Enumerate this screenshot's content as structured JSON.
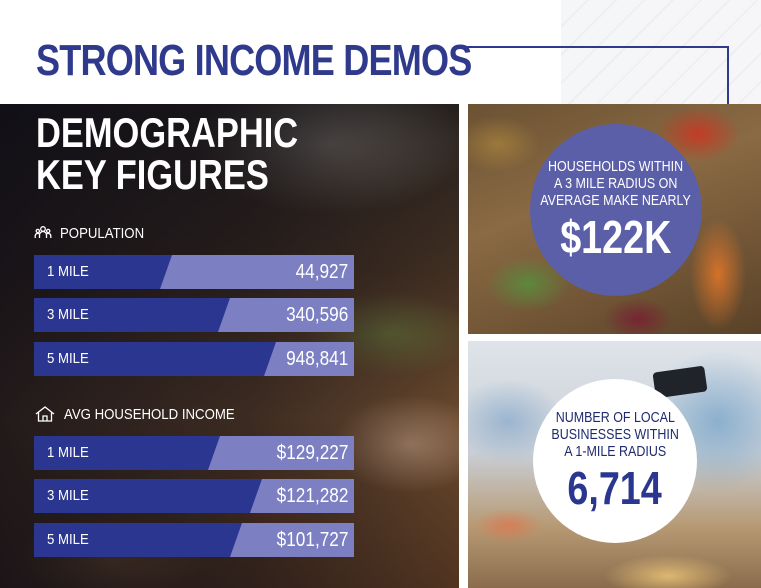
{
  "header": {
    "title": "STRONG INCOME DEMOS"
  },
  "demographics": {
    "title_line1": "DEMOGRAPHIC",
    "title_line2": "KEY FIGURES",
    "population": {
      "label": "POPULATION",
      "icon": "people-icon",
      "rows": [
        {
          "label": "1 MILE",
          "value": "44,927"
        },
        {
          "label": "3 MILE",
          "value": "340,596"
        },
        {
          "label": "5 MILE",
          "value": "948,841"
        }
      ]
    },
    "income": {
      "label": "AVG HOUSEHOLD INCOME",
      "icon": "house-icon",
      "rows": [
        {
          "label": "1 MILE",
          "value": "$129,227"
        },
        {
          "label": "3 MILE",
          "value": "$121,282"
        },
        {
          "label": "5 MILE",
          "value": "$101,727"
        }
      ]
    }
  },
  "households": {
    "line1": "HOUSEHOLDS WITHIN",
    "line2": "A 3 MILE RADIUS ON",
    "line3": "AVERAGE MAKE NEARLY",
    "value": "$122K"
  },
  "businesses": {
    "line1": "NUMBER OF LOCAL",
    "line2": "BUSINESSES WITHIN",
    "line3": "A 1-MILE RADIUS",
    "value": "6,714"
  },
  "colors": {
    "brand_navy": "#2f3a8c",
    "bar_dark": "#2b3690",
    "bar_light": "#7c80c2",
    "circle_purple": "#5b5fa8"
  }
}
